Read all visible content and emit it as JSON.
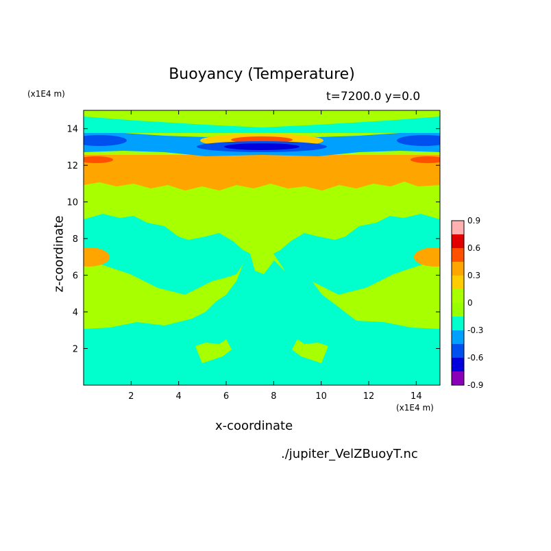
{
  "chart_data": {
    "type": "heatmap",
    "title": "Buoyancy (Temperature)",
    "subtitle": "t=7200.0 y=0.0",
    "xlabel": "x-coordinate",
    "ylabel": "z-coordinate",
    "x_unit": "(x1E4 m)",
    "y_unit": "(x1E4 m)",
    "xlim": [
      0,
      15
    ],
    "ylim": [
      0,
      15
    ],
    "x_ticks": [
      2,
      4,
      6,
      8,
      10,
      12,
      14
    ],
    "y_ticks": [
      2,
      4,
      6,
      8,
      10,
      12,
      14
    ],
    "colorbar": {
      "levels": [
        -0.9,
        -0.75,
        -0.6,
        -0.45,
        -0.3,
        -0.15,
        0,
        0.15,
        0.3,
        0.45,
        0.6,
        0.75,
        0.9
      ],
      "tick_labels": [
        "0.9",
        "0.6",
        "0.3",
        "0",
        "-0.3",
        "-0.6",
        "-0.9"
      ],
      "colors": [
        "#8a00b8",
        "#0000dc",
        "#0050f0",
        "#00a0ff",
        "#00ffcc",
        "#99ff00",
        "#a8ff00",
        "#ffcc00",
        "#ffa500",
        "#ff5000",
        "#e00000",
        "#ffb0b0"
      ]
    },
    "regions": [
      {
        "name": "lower-band",
        "value": -0.15,
        "z_range": [
          0,
          3.2
        ]
      },
      {
        "name": "middle-field",
        "value": 0.05,
        "z_range": [
          3.2,
          11.5
        ]
      },
      {
        "name": "warm-layer",
        "value": 0.3,
        "z_range": [
          10.8,
          12.7
        ]
      },
      {
        "name": "cold-layer",
        "value": -0.45,
        "z_range": [
          12.7,
          13.6
        ]
      },
      {
        "name": "core-warm",
        "value": 0.6,
        "x_range": [
          6,
          9
        ],
        "z_range": [
          13.1,
          13.6
        ]
      },
      {
        "name": "core-cold",
        "value": -0.75,
        "x_range": [
          5.5,
          9.5
        ],
        "z_range": [
          12.8,
          13.1
        ]
      },
      {
        "name": "top-band",
        "value": 0.05,
        "z_range": [
          13.6,
          15
        ]
      }
    ]
  },
  "footer": {
    "filename": "./jupiter_VelZBuoyT.nc"
  }
}
